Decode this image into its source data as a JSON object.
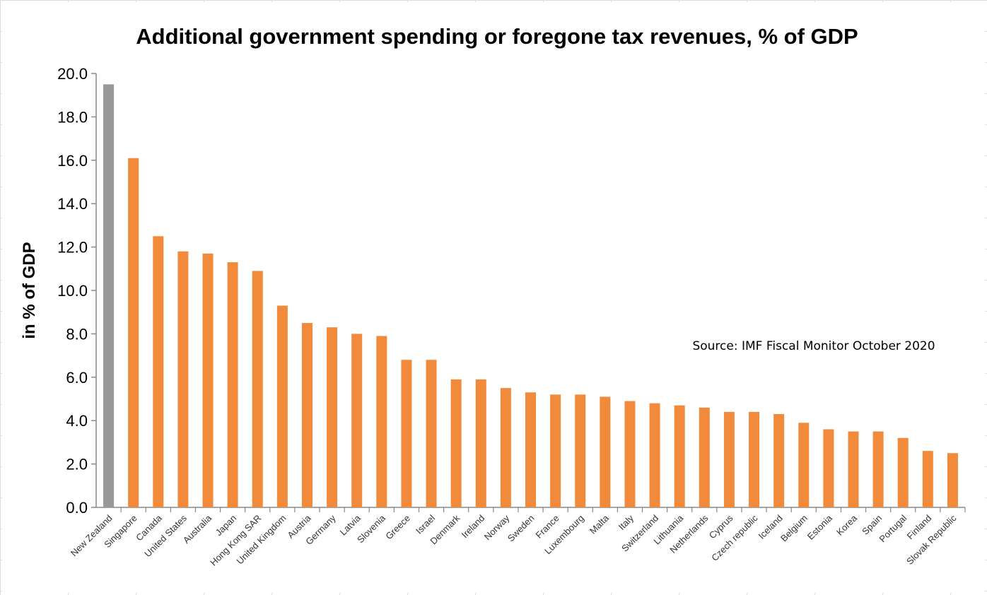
{
  "chart_data": {
    "type": "bar",
    "title": "Additional government spending or foregone tax revenues, % of GDP",
    "xlabel": "",
    "ylabel": "in % of GDP",
    "ylim": [
      0,
      20
    ],
    "yticks": [
      "0.0",
      "2.0",
      "4.0",
      "6.0",
      "8.0",
      "10.0",
      "12.0",
      "14.0",
      "16.0",
      "18.0",
      "20.0"
    ],
    "grid": false,
    "annotation": "Source: IMF Fiscal Monitor October 2020",
    "categories": [
      "New Zealand",
      "Singapore",
      "Canada",
      "United States",
      "Australia",
      "Japan",
      "Hong Kong SAR",
      "United Kingdom",
      "Austria",
      "Germany",
      "Latvia",
      "Slovenia",
      "Greece",
      "Israel",
      "Denmark",
      "Ireland",
      "Norway",
      "Sweden",
      "France",
      "Luxembourg",
      "Malta",
      "Italy",
      "Switzerland",
      "Lithuania",
      "Netherlands",
      "Cyprus",
      "Czech republic",
      "Iceland",
      "Belgium",
      "Estonia",
      "Korea",
      "Spain",
      "Portugal",
      "Finland",
      "Slovak Republic"
    ],
    "values": [
      19.5,
      16.1,
      12.5,
      11.8,
      11.7,
      11.3,
      10.9,
      9.3,
      8.5,
      8.3,
      8.0,
      7.9,
      6.8,
      6.8,
      5.9,
      5.9,
      5.5,
      5.3,
      5.2,
      5.2,
      5.1,
      4.9,
      4.8,
      4.7,
      4.6,
      4.4,
      4.4,
      4.3,
      3.9,
      3.6,
      3.5,
      3.5,
      3.2,
      2.6,
      2.5
    ],
    "highlight_index": 0,
    "colors": {
      "bar": "#f28a3c",
      "highlight": "#999999",
      "axis": "#888888"
    }
  }
}
